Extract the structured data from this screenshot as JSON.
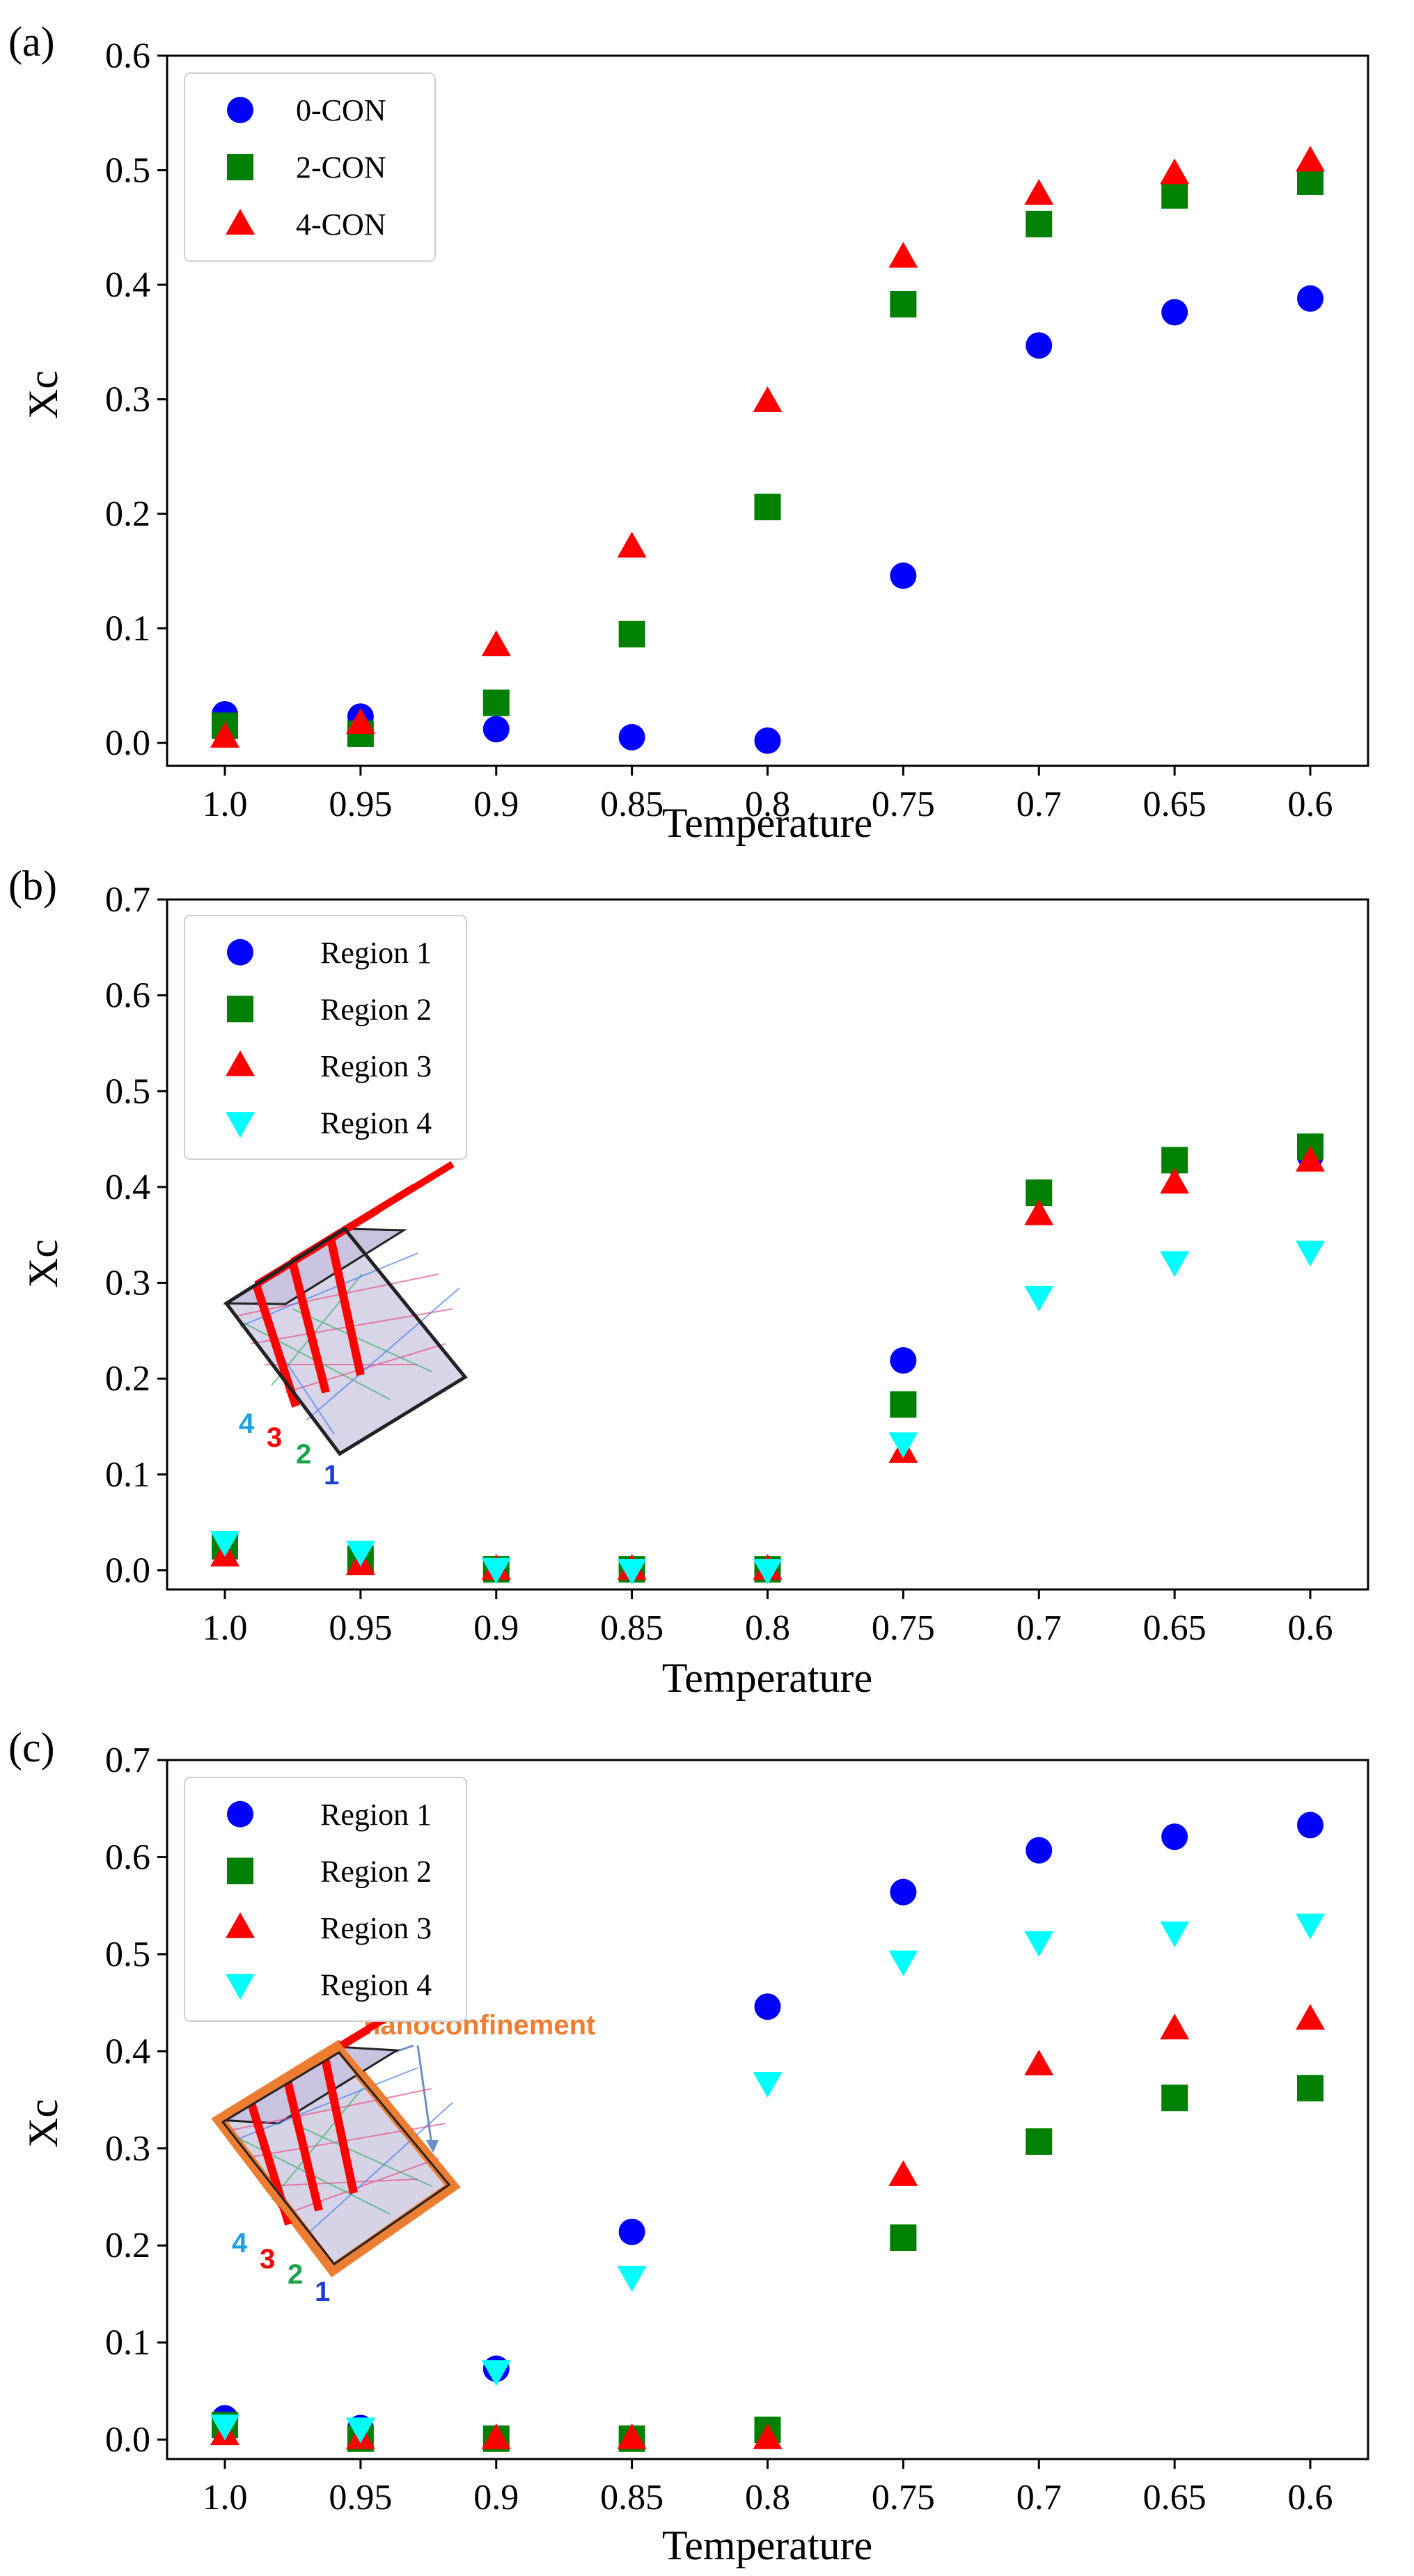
{
  "chart_data": [
    {
      "type": "scatter",
      "panel_label": "(a)",
      "xlabel": "Temperature",
      "ylabel": "Xc",
      "categories": [
        "1.0",
        "0.95",
        "0.9",
        "0.85",
        "0.8",
        "0.75",
        "0.7",
        "0.65",
        "0.6"
      ],
      "ylim": [
        -0.02,
        0.6
      ],
      "yticks": [
        "0.0",
        "0.1",
        "0.2",
        "0.3",
        "0.4",
        "0.5",
        "0.6"
      ],
      "legend_position": "top-left",
      "series": [
        {
          "name": "0-CON",
          "marker": "circle",
          "color": "#0000ff",
          "values": [
            0.025,
            0.023,
            0.012,
            0.005,
            0.002,
            0.146,
            0.347,
            0.376,
            0.388
          ]
        },
        {
          "name": "2-CON",
          "marker": "square",
          "color": "#008000",
          "values": [
            0.015,
            0.008,
            0.035,
            0.095,
            0.206,
            0.383,
            0.453,
            0.478,
            0.49
          ]
        },
        {
          "name": "4-CON",
          "marker": "triangle-up",
          "color": "#ff0000",
          "values": [
            0.005,
            0.017,
            0.085,
            0.171,
            0.298,
            0.424,
            0.479,
            0.497,
            0.508
          ]
        }
      ]
    },
    {
      "type": "scatter",
      "panel_label": "(b)",
      "xlabel": "Temperature",
      "ylabel": "Xc",
      "categories": [
        "1.0",
        "0.95",
        "0.9",
        "0.85",
        "0.8",
        "0.75",
        "0.7",
        "0.65",
        "0.6"
      ],
      "ylim": [
        -0.02,
        0.7
      ],
      "yticks": [
        "0.0",
        "0.1",
        "0.2",
        "0.3",
        "0.4",
        "0.5",
        "0.6",
        "0.7"
      ],
      "legend_position": "top-left",
      "inset_numbers": [
        "4",
        "3",
        "2",
        "1"
      ],
      "series": [
        {
          "name": "Region 1",
          "marker": "circle",
          "color": "#0000ff",
          "values": [
            0.022,
            0.012,
            0.001,
            0.001,
            0.001,
            0.219,
            0.394,
            0.427,
            0.432
          ]
        },
        {
          "name": "Region 2",
          "marker": "square",
          "color": "#008000",
          "values": [
            0.025,
            0.012,
            0.001,
            0.001,
            0.001,
            0.173,
            0.394,
            0.428,
            0.442
          ]
        },
        {
          "name": "Region 3",
          "marker": "triangle-up",
          "color": "#ff0000",
          "values": [
            0.015,
            0.006,
            0.001,
            0.001,
            0.001,
            0.123,
            0.371,
            0.404,
            0.427
          ]
        },
        {
          "name": "Region 4",
          "marker": "triangle-down",
          "color": "#00ffff",
          "values": [
            0.03,
            0.02,
            0.002,
            0.001,
            0.001,
            0.133,
            0.286,
            0.322,
            0.333
          ]
        }
      ]
    },
    {
      "type": "scatter",
      "panel_label": "(c)",
      "xlabel": "Temperature",
      "ylabel": "Xc",
      "categories": [
        "1.0",
        "0.95",
        "0.9",
        "0.85",
        "0.8",
        "0.75",
        "0.7",
        "0.65",
        "0.6"
      ],
      "ylim": [
        -0.02,
        0.7
      ],
      "yticks": [
        "0.0",
        "0.1",
        "0.2",
        "0.3",
        "0.4",
        "0.5",
        "0.6",
        "0.7"
      ],
      "legend_position": "top-left",
      "annotation": "nanoconfinement",
      "inset_numbers": [
        "4",
        "3",
        "2",
        "1"
      ],
      "series": [
        {
          "name": "Region 1",
          "marker": "circle",
          "color": "#0000ff",
          "values": [
            0.022,
            0.012,
            0.073,
            0.214,
            0.446,
            0.564,
            0.607,
            0.621,
            0.633
          ]
        },
        {
          "name": "Region 2",
          "marker": "square",
          "color": "#008000",
          "values": [
            0.015,
            0.001,
            0.001,
            0.001,
            0.01,
            0.208,
            0.307,
            0.352,
            0.362
          ]
        },
        {
          "name": "Region 3",
          "marker": "triangle-up",
          "color": "#ff0000",
          "values": [
            0.005,
            0.001,
            0.001,
            0.001,
            0.001,
            0.272,
            0.386,
            0.423,
            0.433
          ]
        },
        {
          "name": "Region 4",
          "marker": "triangle-down",
          "color": "#00ffff",
          "values": [
            0.015,
            0.012,
            0.071,
            0.168,
            0.368,
            0.493,
            0.513,
            0.523,
            0.531
          ]
        }
      ]
    }
  ]
}
